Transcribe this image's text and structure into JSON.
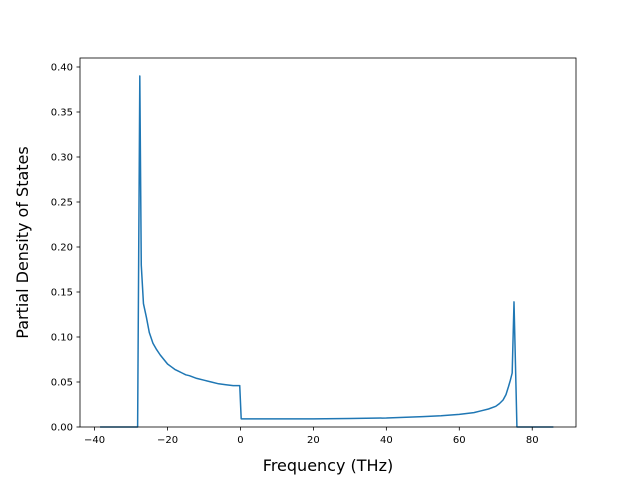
{
  "chart_data": {
    "type": "line",
    "xlabel": "Frequency (THz)",
    "ylabel": "Partial Density of States",
    "xlim": [
      -44,
      92
    ],
    "ylim": [
      0,
      0.41
    ],
    "xticks": [
      -40,
      -20,
      0,
      20,
      40,
      60,
      80
    ],
    "yticks": [
      0.0,
      0.05,
      0.1,
      0.15,
      0.2,
      0.25,
      0.3,
      0.35,
      0.4
    ],
    "grid": false,
    "line_color": "#1f77b4",
    "series": [
      {
        "x": [
          -38.5,
          -28.2,
          -27.6,
          -27.2,
          -26.6,
          -25.8,
          -25.0,
          -24.0,
          -23.0,
          -22.0,
          -21.0,
          -20.0,
          -19.0,
          -18.0,
          -17.0,
          -16.0,
          -15.0,
          -14.0,
          -12.0,
          -10.0,
          -8.0,
          -6.0,
          -4.0,
          -2.0,
          -0.2,
          0.2,
          5.0,
          10.0,
          20.0,
          30.0,
          40.0,
          50.0,
          55.0,
          60.0,
          62.0,
          64.0,
          66.0,
          68.0,
          70.0,
          71.0,
          72.0,
          72.8,
          73.5,
          74.0,
          74.5,
          75.0,
          75.4,
          75.8,
          76.5,
          80.0,
          85.8
        ],
        "y": [
          0.0,
          0.0,
          0.39,
          0.18,
          0.137,
          0.122,
          0.105,
          0.093,
          0.086,
          0.08,
          0.075,
          0.07,
          0.067,
          0.064,
          0.062,
          0.06,
          0.058,
          0.057,
          0.054,
          0.052,
          0.05,
          0.048,
          0.047,
          0.046,
          0.046,
          0.009,
          0.009,
          0.009,
          0.009,
          0.0095,
          0.01,
          0.0115,
          0.0125,
          0.014,
          0.015,
          0.016,
          0.018,
          0.02,
          0.023,
          0.026,
          0.03,
          0.036,
          0.045,
          0.052,
          0.06,
          0.139,
          0.07,
          0.0,
          0.0,
          0.0,
          0.0
        ]
      }
    ]
  }
}
